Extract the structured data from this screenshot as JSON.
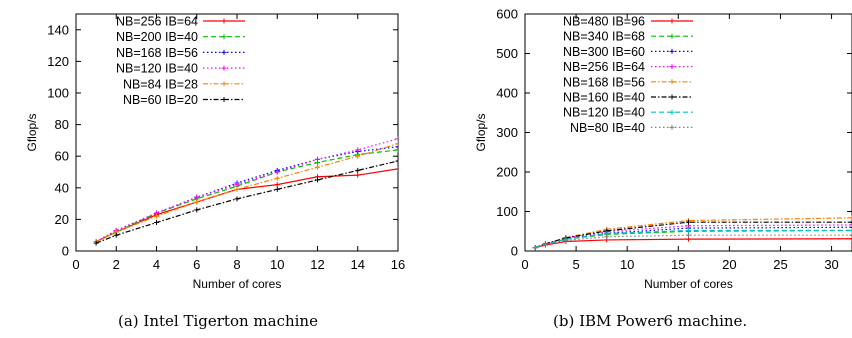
{
  "chart_data": [
    {
      "type": "line",
      "xlabel": "Number of cores",
      "ylabel": "Gflop/s",
      "xlim": [
        0,
        16
      ],
      "ylim": [
        0,
        150
      ],
      "xticks": [
        0,
        2,
        4,
        6,
        8,
        10,
        12,
        14,
        16
      ],
      "yticks": [
        0,
        20,
        40,
        60,
        80,
        100,
        120,
        140
      ],
      "legend_position": "top-left",
      "caption": "(a) Intel Tigerton machine",
      "series": [
        {
          "name": "NB=256 IB=64",
          "color": "#ff0000",
          "dash": "solid",
          "x": [
            1,
            2,
            4,
            6,
            8,
            10,
            12,
            14,
            16
          ],
          "y": [
            6,
            12,
            23,
            31,
            39,
            42,
            47,
            48,
            52
          ]
        },
        {
          "name": "NB=200 IB=40",
          "color": "#00c000",
          "dash": "dashed",
          "x": [
            1,
            2,
            4,
            6,
            8,
            10,
            12,
            14,
            16
          ],
          "y": [
            6,
            12,
            24,
            33,
            41,
            50,
            56,
            61,
            64
          ]
        },
        {
          "name": "NB=168 IB=56",
          "color": "#0000ff",
          "dash": "dotted",
          "x": [
            1,
            2,
            4,
            6,
            8,
            10,
            12,
            14,
            16
          ],
          "y": [
            6,
            13,
            24,
            34,
            43,
            51,
            58,
            63,
            66
          ]
        },
        {
          "name": "NB=120 IB=40",
          "color": "#ff00ff",
          "dash": "dotted",
          "x": [
            1,
            2,
            4,
            6,
            8,
            10,
            12,
            14,
            16
          ],
          "y": [
            6,
            13,
            24,
            34,
            42,
            50,
            58,
            64,
            71
          ]
        },
        {
          "name": "NB=84 IB=28",
          "color": "#ff8000",
          "dash": "dashdot",
          "x": [
            1,
            2,
            4,
            6,
            8,
            10,
            12,
            14,
            16
          ],
          "y": [
            6,
            12,
            22,
            31,
            39,
            46,
            53,
            60,
            68
          ]
        },
        {
          "name": "NB=60 IB=20",
          "color": "#000000",
          "dash": "dashdot",
          "x": [
            1,
            2,
            4,
            6,
            8,
            10,
            12,
            14,
            16
          ],
          "y": [
            5,
            10,
            18,
            26,
            33,
            39,
            45,
            51,
            57
          ]
        }
      ]
    },
    {
      "type": "line",
      "xlabel": "Number of cores",
      "ylabel": "Gflop/s",
      "xlim": [
        0,
        32
      ],
      "ylim": [
        0,
        600
      ],
      "xticks": [
        0,
        5,
        10,
        15,
        20,
        25,
        30
      ],
      "yticks": [
        0,
        100,
        200,
        300,
        400,
        500,
        600
      ],
      "legend_position": "top-left",
      "caption": "(b) IBM Power6 machine.",
      "series": [
        {
          "name": "NB=480 IB=96",
          "color": "#ff0000",
          "dash": "solid",
          "x": [
            1,
            2,
            4,
            8,
            16,
            32
          ],
          "y": [
            8,
            15,
            24,
            28,
            30,
            31
          ]
        },
        {
          "name": "NB=340 IB=68",
          "color": "#00c000",
          "dash": "dashed",
          "x": [
            1,
            2,
            4,
            8,
            16,
            32
          ],
          "y": [
            9,
            17,
            30,
            42,
            50,
            52
          ]
        },
        {
          "name": "NB=300 IB=60",
          "color": "#0000ff",
          "dash": "dotted",
          "x": [
            1,
            2,
            4,
            8,
            16,
            32
          ],
          "y": [
            9,
            17,
            31,
            45,
            58,
            60
          ]
        },
        {
          "name": "NB=256 IB=64",
          "color": "#ff00ff",
          "dash": "dotted",
          "x": [
            1,
            2,
            4,
            8,
            16,
            32
          ],
          "y": [
            9,
            18,
            33,
            49,
            64,
            66
          ]
        },
        {
          "name": "NB=168 IB=56",
          "color": "#ff8000",
          "dash": "dashdot",
          "x": [
            1,
            2,
            4,
            8,
            16,
            32
          ],
          "y": [
            9,
            18,
            34,
            55,
            77,
            84
          ]
        },
        {
          "name": "NB=160 IB=40",
          "color": "#000000",
          "dash": "dashdot",
          "x": [
            1,
            2,
            4,
            8,
            16,
            32
          ],
          "y": [
            9,
            18,
            33,
            51,
            73,
            73
          ]
        },
        {
          "name": "NB=120 IB=40",
          "color": "#00c0c0",
          "dash": "dashed",
          "x": [
            1,
            2,
            4,
            8,
            16,
            32
          ],
          "y": [
            9,
            17,
            30,
            44,
            52,
            52
          ]
        },
        {
          "name": "NB=80 IB=40",
          "color": "#808080",
          "dash": "dotted",
          "x": [
            1,
            2,
            4,
            8,
            16,
            32
          ],
          "y": [
            8,
            16,
            27,
            36,
            40,
            40
          ]
        }
      ]
    }
  ]
}
